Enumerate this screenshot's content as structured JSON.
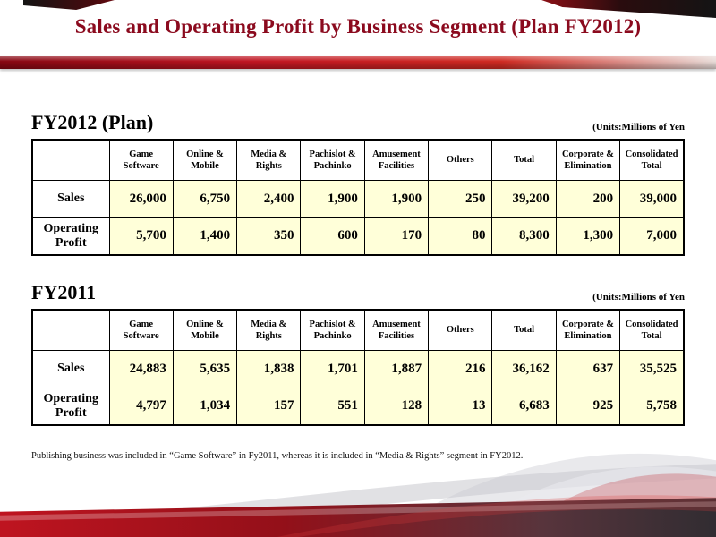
{
  "slide": {
    "title": "Sales and Operating Profit by Business Segment (Plan FY2012)",
    "footnote": "Publishing business was included in “Game Software” in Fy2011, whereas it is included in “Media & Rights” segment in FY2012."
  },
  "tables": [
    {
      "heading": "FY2012 (Plan)",
      "units": "(Units:Millions of Yen",
      "columns": [
        "Game\nSoftware",
        "Online &\nMobile",
        "Media &\nRights",
        "Pachislot &\nPachinko",
        "Amusement\nFacilities",
        "Others",
        "Total",
        "Corporate &\nElimination",
        "Consolidated\nTotal"
      ],
      "rows": [
        {
          "label": "Sales",
          "values": [
            "26,000",
            "6,750",
            "2,400",
            "1,900",
            "1,900",
            "250",
            "39,200",
            "200",
            "39,000"
          ]
        },
        {
          "label": "Operating Profit",
          "values": [
            "5,700",
            "1,400",
            "350",
            "600",
            "170",
            "80",
            "8,300",
            "1,300",
            "7,000"
          ]
        }
      ]
    },
    {
      "heading": "FY2011",
      "units": "(Units:Millions of Yen",
      "columns": [
        "Game\nSoftware",
        "Online &\nMobile",
        "Media &\nRights",
        "Pachislot &\nPachinko",
        "Amusement\nFacilities",
        "Others",
        "Total",
        "Corporate &\nElimination",
        "Consolidated\nTotal"
      ],
      "rows": [
        {
          "label": "Sales",
          "values": [
            "24,883",
            "5,635",
            "1,838",
            "1,701",
            "1,887",
            "216",
            "36,162",
            "637",
            "35,525"
          ]
        },
        {
          "label": "Operating Profit",
          "values": [
            "4,797",
            "1,034",
            "157",
            "551",
            "128",
            "13",
            "6,683",
            "925",
            "5,758"
          ]
        }
      ]
    }
  ]
}
